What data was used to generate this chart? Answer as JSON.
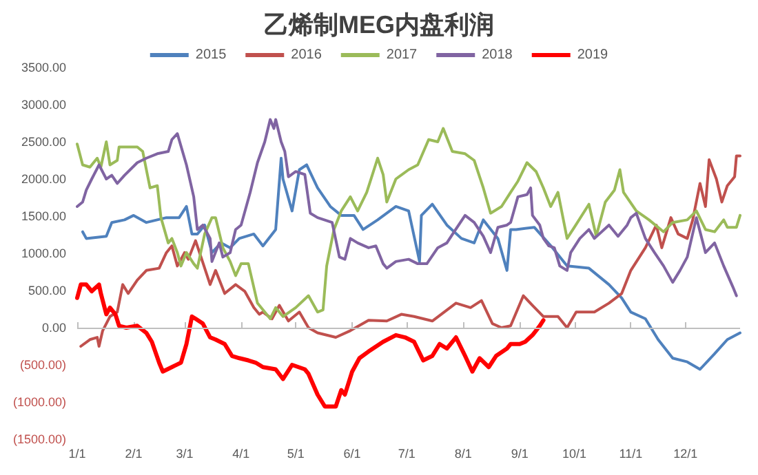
{
  "chart_data": {
    "type": "line",
    "title": "乙烯制MEG内盘利润",
    "xlim": [
      "--01-01",
      "--12-31"
    ],
    "xticks": [
      {
        "value": "--01-01",
        "label": "1/1"
      },
      {
        "value": "--02-01",
        "label": "2/1"
      },
      {
        "value": "--03-01",
        "label": "3/1"
      },
      {
        "value": "--04-01",
        "label": "4/1"
      },
      {
        "value": "--05-01",
        "label": "5/1"
      },
      {
        "value": "--06-01",
        "label": "6/1"
      },
      {
        "value": "--07-01",
        "label": "7/1"
      },
      {
        "value": "--08-01",
        "label": "8/1"
      },
      {
        "value": "--09-01",
        "label": "9/1"
      },
      {
        "value": "--10-01",
        "label": "10/1"
      },
      {
        "value": "--11-01",
        "label": "11/1"
      },
      {
        "value": "--12-01",
        "label": "12/1"
      }
    ],
    "ylim": [
      -1500,
      3500
    ],
    "yticks": [
      {
        "value": -1500,
        "label": "(1500.00)"
      },
      {
        "value": -1000,
        "label": "(1000.00)"
      },
      {
        "value": -500,
        "label": "(500.00)"
      },
      {
        "value": 0,
        "label": "0.00"
      },
      {
        "value": 500,
        "label": "500.00"
      },
      {
        "value": 1000,
        "label": "1000.00"
      },
      {
        "value": 1500,
        "label": "1500.00"
      },
      {
        "value": 2000,
        "label": "2000.00"
      },
      {
        "value": 2500,
        "label": "2500.00"
      },
      {
        "value": 3000,
        "label": "3000.00"
      },
      {
        "value": 3500,
        "label": "3500.00"
      }
    ],
    "ref_lines": [
      {
        "axis": "y",
        "value": 0,
        "color": "#bfbfbf",
        "line_style": "solid"
      }
    ],
    "grid": false,
    "legend": "top",
    "marker": "none",
    "line_style": "solid",
    "series": [
      {
        "name": "2015",
        "color": "#4f81bd",
        "x": [
          "--01-04",
          "--01-06",
          "--01-17",
          "--01-20",
          "--01-27",
          "--02-01",
          "--02-08",
          "--02-19",
          "--02-26",
          "--03-02",
          "--03-05",
          "--03-08",
          "--03-12",
          "--03-16",
          "--03-21",
          "--03-26",
          "--03-31",
          "--04-08",
          "--04-13",
          "--04-20",
          "--04-23",
          "--04-24",
          "--04-29",
          "--05-03",
          "--05-07",
          "--05-13",
          "--05-20",
          "--05-26",
          "--06-02",
          "--06-07",
          "--06-15",
          "--06-25",
          "--07-02",
          "--07-08",
          "--07-09",
          "--07-15",
          "--07-23",
          "--07-31",
          "--08-07",
          "--08-12",
          "--08-20",
          "--08-25",
          "--08-27",
          "--08-30",
          "--09-09",
          "--09-19",
          "--09-27",
          "--10-09",
          "--10-20",
          "--10-27",
          "--11-01",
          "--11-09",
          "--11-16",
          "--11-24",
          "--12-02",
          "--12-09",
          "--12-17",
          "--12-24",
          "--12-31"
        ],
        "values": [
          1290,
          1200,
          1230,
          1415,
          1450,
          1510,
          1415,
          1480,
          1480,
          1630,
          1260,
          1260,
          1380,
          1010,
          1140,
          1075,
          1200,
          1260,
          1100,
          1320,
          2280,
          2000,
          1570,
          2125,
          2190,
          1880,
          1630,
          1510,
          1510,
          1320,
          1450,
          1630,
          1570,
          890,
          1510,
          1660,
          1380,
          1200,
          1140,
          1450,
          1200,
          770,
          1320,
          1320,
          1350,
          1075,
          830,
          800,
          580,
          400,
          210,
          120,
          -160,
          -410,
          -460,
          -560,
          -350,
          -160,
          -70
        ]
      },
      {
        "name": "2016",
        "color": "#c0504d",
        "x": [
          "--01-03",
          "--01-08",
          "--01-12",
          "--01-13",
          "--01-15",
          "--01-19",
          "--01-23",
          "--01-26",
          "--01-29",
          "--02-03",
          "--02-08",
          "--02-15",
          "--02-19",
          "--02-22",
          "--02-25",
          "--03-01",
          "--03-03",
          "--03-07",
          "--03-10",
          "--03-15",
          "--03-18",
          "--03-23",
          "--03-29",
          "--04-03",
          "--04-08",
          "--04-11",
          "--04-13",
          "--04-18",
          "--04-22",
          "--04-27",
          "--05-03",
          "--05-08",
          "--05-13",
          "--05-23",
          "--05-31",
          "--06-10",
          "--06-20",
          "--06-28",
          "--07-05",
          "--07-15",
          "--07-28",
          "--08-05",
          "--08-11",
          "--08-17",
          "--08-22",
          "--08-27",
          "--09-03",
          "--09-08",
          "--09-14",
          "--09-22",
          "--09-27",
          "--10-02",
          "--10-12",
          "--10-20",
          "--10-27",
          "--11-01",
          "--11-09",
          "--11-15",
          "--11-18",
          "--11-23",
          "--11-27",
          "--12-02",
          "--12-05",
          "--12-09",
          "--12-12",
          "--12-14",
          "--12-18",
          "--12-21",
          "--12-24",
          "--12-28",
          "--12-29",
          "--12-31"
        ],
        "values": [
          -250,
          -160,
          -130,
          -250,
          -40,
          150,
          210,
          580,
          460,
          640,
          770,
          800,
          1010,
          1100,
          830,
          1010,
          920,
          1170,
          950,
          580,
          770,
          460,
          580,
          490,
          270,
          180,
          210,
          120,
          300,
          90,
          210,
          0,
          -70,
          -130,
          -40,
          100,
          90,
          180,
          150,
          90,
          330,
          270,
          365,
          55,
          0,
          25,
          430,
          300,
          150,
          150,
          0,
          210,
          210,
          330,
          460,
          770,
          1075,
          1380,
          1075,
          1480,
          1260,
          1200,
          1450,
          1940,
          1630,
          2260,
          2000,
          1690,
          1910,
          2030,
          2310,
          2310
        ]
      },
      {
        "name": "2017",
        "color": "#9bbb59",
        "x": [
          "--01-01",
          "--01-04",
          "--01-08",
          "--01-12",
          "--01-14",
          "--01-17",
          "--01-19",
          "--01-23",
          "--01-24",
          "--02-03",
          "--02-06",
          "--02-10",
          "--02-14",
          "--02-16",
          "--02-20",
          "--02-22",
          "--02-25",
          "--02-27",
          "--03-02",
          "--03-06",
          "--03-08",
          "--03-12",
          "--03-16",
          "--03-18",
          "--03-22",
          "--03-26",
          "--03-29",
          "--04-01",
          "--04-05",
          "--04-10",
          "--04-17",
          "--04-20",
          "--04-24",
          "--05-01",
          "--05-08",
          "--05-13",
          "--05-16",
          "--05-18",
          "--05-22",
          "--05-26",
          "--05-31",
          "--06-04",
          "--06-09",
          "--06-15",
          "--06-18",
          "--06-20",
          "--06-25",
          "--07-02",
          "--07-07",
          "--07-13",
          "--07-18",
          "--07-21",
          "--07-26",
          "--08-02",
          "--08-07",
          "--08-12",
          "--08-16",
          "--08-22",
          "--08-27",
          "--08-31",
          "--09-05",
          "--09-10",
          "--09-14",
          "--09-18",
          "--09-22",
          "--09-27",
          "--10-01",
          "--10-09",
          "--10-13",
          "--10-18",
          "--10-23",
          "--10-26",
          "--10-28",
          "--11-04",
          "--11-11",
          "--11-19",
          "--11-24",
          "--12-02",
          "--12-07",
          "--12-12",
          "--12-17",
          "--12-22",
          "--12-24",
          "--12-29",
          "--12-31"
        ],
        "values": [
          2470,
          2190,
          2160,
          2280,
          2160,
          2500,
          2190,
          2250,
          2430,
          2430,
          2370,
          1880,
          1910,
          1480,
          1140,
          1200,
          1010,
          830,
          1010,
          860,
          800,
          1260,
          1480,
          1480,
          1075,
          890,
          700,
          860,
          860,
          330,
          120,
          270,
          150,
          270,
          430,
          210,
          240,
          830,
          1320,
          1570,
          1760,
          1570,
          1820,
          2280,
          2060,
          1690,
          2000,
          2125,
          2190,
          2530,
          2500,
          2680,
          2370,
          2340,
          2250,
          1880,
          1540,
          1630,
          1820,
          1970,
          2220,
          2100,
          1880,
          1630,
          1820,
          1200,
          1350,
          1660,
          1230,
          1690,
          1850,
          2125,
          1820,
          1570,
          1450,
          1290,
          1415,
          1450,
          1570,
          1320,
          1290,
          1450,
          1350,
          1350,
          1510
        ]
      },
      {
        "name": "2018",
        "color": "#8064a2",
        "x": [
          "--01-01",
          "--01-04",
          "--01-06",
          "--01-09",
          "--01-13",
          "--01-17",
          "--01-20",
          "--01-23",
          "--01-27",
          "--02-03",
          "--02-08",
          "--02-14",
          "--02-20",
          "--02-22",
          "--02-25",
          "--03-02",
          "--03-06",
          "--03-08",
          "--03-11",
          "--03-15",
          "--03-16",
          "--03-20",
          "--03-22",
          "--03-26",
          "--03-29",
          "--04-01",
          "--04-06",
          "--04-10",
          "--04-14",
          "--04-17",
          "--04-19",
          "--04-20",
          "--04-23",
          "--04-25",
          "--04-27",
          "--05-01",
          "--05-06",
          "--05-09",
          "--05-13",
          "--05-21",
          "--05-25",
          "--05-28",
          "--05-31",
          "--06-04",
          "--06-10",
          "--06-14",
          "--06-18",
          "--06-20",
          "--06-25",
          "--07-02",
          "--07-07",
          "--07-12",
          "--07-18",
          "--07-23",
          "--07-27",
          "--08-02",
          "--08-07",
          "--08-12",
          "--08-16",
          "--08-20",
          "--08-25",
          "--08-27",
          "--08-31",
          "--09-05",
          "--09-07",
          "--09-08",
          "--09-12",
          "--09-14",
          "--09-17",
          "--09-20",
          "--09-23",
          "--09-27",
          "--09-29",
          "--10-04",
          "--10-09",
          "--10-12",
          "--10-20",
          "--10-25",
          "--10-30",
          "--11-01",
          "--11-04",
          "--11-09",
          "--11-14",
          "--11-19",
          "--11-24",
          "--11-28",
          "--12-02",
          "--12-07",
          "--12-12",
          "--12-17",
          "--12-22",
          "--12-27",
          "--12-29"
        ],
        "values": [
          1630,
          1690,
          1850,
          2000,
          2190,
          2000,
          2050,
          1940,
          2050,
          2220,
          2280,
          2340,
          2370,
          2530,
          2610,
          2190,
          1760,
          1320,
          1380,
          1200,
          890,
          1140,
          950,
          1010,
          1320,
          1380,
          1820,
          2220,
          2500,
          2800,
          2680,
          2800,
          2500,
          2370,
          2030,
          2100,
          2060,
          1540,
          1480,
          1415,
          950,
          920,
          1200,
          1140,
          1075,
          1100,
          860,
          800,
          890,
          920,
          860,
          860,
          1075,
          1140,
          1290,
          1510,
          1415,
          1230,
          1010,
          1350,
          1380,
          1415,
          1760,
          1790,
          1880,
          1510,
          1380,
          1200,
          1100,
          1075,
          830,
          770,
          1010,
          1200,
          1320,
          1200,
          1380,
          1230,
          1380,
          1480,
          1540,
          1200,
          1010,
          830,
          610,
          770,
          950,
          1480,
          1010,
          1140,
          830,
          550,
          430
        ]
      },
      {
        "name": "2019",
        "color": "#ff0000",
        "x": [
          "--01-01",
          "--01-03",
          "--01-06",
          "--01-09",
          "--01-13",
          "--01-14",
          "--01-17",
          "--01-19",
          "--01-22",
          "--01-24",
          "--01-28",
          "--02-03",
          "--02-08",
          "--02-11",
          "--02-15",
          "--02-17",
          "--02-22",
          "--02-27",
          "--03-02",
          "--03-05",
          "--03-07",
          "--03-11",
          "--03-15",
          "--03-18",
          "--03-23",
          "--03-27",
          "--03-31",
          "--04-05",
          "--04-09",
          "--04-13",
          "--04-20",
          "--04-24",
          "--04-29",
          "--05-06",
          "--05-08",
          "--05-13",
          "--05-17",
          "--05-23",
          "--05-26",
          "--05-28",
          "--06-01",
          "--06-05",
          "--06-10",
          "--06-18",
          "--06-25",
          "--06-30",
          "--07-05",
          "--07-10",
          "--07-15",
          "--07-19",
          "--07-23",
          "--07-28",
          "--08-02",
          "--08-06",
          "--08-10",
          "--08-15",
          "--08-19",
          "--08-25",
          "--08-27",
          "--09-01",
          "--09-04",
          "--09-08",
          "--09-12",
          "--09-14"
        ],
        "values": [
          400,
          580,
          580,
          490,
          580,
          460,
          180,
          270,
          180,
          25,
          0,
          25,
          -70,
          -190,
          -470,
          -590,
          -530,
          -470,
          -220,
          150,
          120,
          55,
          -130,
          -160,
          -220,
          -380,
          -410,
          -440,
          -470,
          -530,
          -560,
          -690,
          -500,
          -560,
          -620,
          -900,
          -1060,
          -1060,
          -840,
          -900,
          -590,
          -410,
          -320,
          -190,
          -100,
          -130,
          -190,
          -440,
          -380,
          -220,
          -280,
          -130,
          -380,
          -590,
          -410,
          -530,
          -380,
          -280,
          -220,
          -220,
          -190,
          -100,
          25,
          100
        ]
      }
    ]
  }
}
